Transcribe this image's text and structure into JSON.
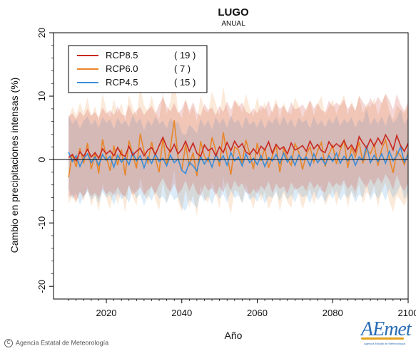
{
  "header": {
    "title": "LUGO",
    "subtitle": "ANUAL"
  },
  "footer": {
    "credit": "Agencia Estatal de Meteorología",
    "logo_text": "AEmet",
    "logo_caption": "Agencia Estatal de Meteorología"
  },
  "colors": {
    "RCP8.5": "#c8281e",
    "RCP6.0": "#e8862a",
    "RCP4.5": "#3a8ed8",
    "zero_line": "#000000"
  },
  "chart_data": {
    "type": "line",
    "title": "LUGO",
    "subtitle": "ANUAL",
    "xlabel": "Año",
    "ylabel": "Cambio en precipitaciones intensas (%)",
    "xlim": [
      2006,
      2100
    ],
    "ylim": [
      -22,
      20
    ],
    "xticks": [
      2020,
      2040,
      2060,
      2080,
      2100
    ],
    "yticks": [
      -20,
      -10,
      0,
      10,
      20
    ],
    "legend_position": "top-left",
    "grid": false,
    "x": [
      2010,
      2011,
      2012,
      2013,
      2014,
      2015,
      2016,
      2017,
      2018,
      2019,
      2020,
      2021,
      2022,
      2023,
      2024,
      2025,
      2026,
      2027,
      2028,
      2029,
      2030,
      2031,
      2032,
      2033,
      2034,
      2035,
      2036,
      2037,
      2038,
      2039,
      2040,
      2041,
      2042,
      2043,
      2044,
      2045,
      2046,
      2047,
      2048,
      2049,
      2050,
      2051,
      2052,
      2053,
      2054,
      2055,
      2056,
      2057,
      2058,
      2059,
      2060,
      2061,
      2062,
      2063,
      2064,
      2065,
      2066,
      2067,
      2068,
      2069,
      2070,
      2071,
      2072,
      2073,
      2074,
      2075,
      2076,
      2077,
      2078,
      2079,
      2080,
      2081,
      2082,
      2083,
      2084,
      2085,
      2086,
      2087,
      2088,
      2089,
      2090,
      2091,
      2092,
      2093,
      2094,
      2095,
      2096,
      2097,
      2098,
      2099,
      2100
    ],
    "series": [
      {
        "name": "RCP8.5",
        "count": "( 19 )",
        "color": "#c8281e",
        "values": [
          0.3,
          0.8,
          -0.2,
          1.2,
          0.5,
          1.6,
          0.4,
          1.1,
          0.2,
          1.7,
          0.9,
          1.4,
          0.6,
          1.9,
          0.8,
          0.5,
          2.1,
          0.7,
          1.3,
          1.8,
          0.6,
          1.5,
          1.9,
          0.8,
          2.2,
          3.5,
          2.0,
          1.2,
          2.4,
          0.9,
          1.6,
          2.9,
          1.3,
          2.6,
          1.0,
          0.5,
          2.3,
          1.4,
          1.8,
          0.6,
          2.0,
          1.1,
          2.7,
          1.4,
          2.9,
          1.9,
          2.5,
          1.2,
          0.8,
          1.7,
          0.9,
          2.1,
          1.5,
          2.8,
          1.0,
          2.4,
          1.6,
          2.0,
          0.9,
          2.6,
          1.5,
          1.8,
          2.2,
          1.3,
          2.9,
          1.7,
          2.4,
          1.4,
          1.1,
          2.8,
          1.9,
          2.5,
          2.0,
          3.0,
          1.6,
          2.3,
          1.2,
          3.6,
          2.6,
          1.8,
          3.2,
          2.1,
          3.4,
          2.4,
          3.9,
          2.9,
          1.5,
          3.8,
          2.2,
          1.3,
          2.6
        ],
        "upper": [
          6.8,
          7.3,
          6.4,
          7.6,
          6.8,
          8.0,
          6.9,
          7.5,
          6.6,
          8.2,
          7.2,
          7.8,
          7.0,
          8.4,
          7.2,
          6.9,
          8.6,
          7.1,
          7.7,
          8.3,
          7.0,
          7.9,
          8.4,
          7.2,
          8.7,
          9.8,
          8.4,
          7.6,
          8.9,
          7.3,
          8.0,
          9.4,
          7.7,
          9.1,
          7.4,
          6.9,
          8.8,
          7.8,
          8.2,
          7.0,
          8.5,
          7.5,
          9.2,
          7.8,
          9.4,
          8.3,
          9.0,
          7.6,
          7.2,
          8.1,
          7.3,
          8.6,
          7.9,
          9.3,
          7.4,
          8.9,
          8.0,
          8.5,
          7.3,
          9.1,
          7.9,
          8.2,
          8.7,
          7.7,
          9.4,
          8.1,
          8.9,
          7.8,
          7.5,
          9.3,
          8.3,
          9.0,
          8.5,
          9.5,
          8.0,
          8.8,
          7.6,
          10.1,
          9.1,
          8.2,
          9.7,
          8.6,
          9.9,
          8.9,
          10.4,
          9.4,
          7.9,
          10.3,
          8.7,
          7.7,
          9.1
        ],
        "lower": [
          -6.0,
          -5.5,
          -6.6,
          -5.1,
          -5.9,
          -4.7,
          -5.8,
          -5.2,
          -6.1,
          -4.6,
          -5.5,
          -4.9,
          -5.7,
          -4.3,
          -5.5,
          -5.8,
          -4.1,
          -5.6,
          -5.0,
          -4.4,
          -5.7,
          -4.8,
          -4.3,
          -5.5,
          -4.0,
          -2.9,
          -4.3,
          -5.1,
          -3.8,
          -5.4,
          -4.7,
          -3.3,
          -5.0,
          -3.6,
          -5.3,
          -5.8,
          -3.9,
          -4.9,
          -4.5,
          -5.7,
          -4.2,
          -5.2,
          -3.5,
          -4.9,
          -3.3,
          -4.4,
          -3.7,
          -5.1,
          -5.5,
          -4.6,
          -5.4,
          -4.1,
          -4.8,
          -3.4,
          -5.3,
          -3.8,
          -4.7,
          -4.2,
          -5.4,
          -3.6,
          -4.8,
          -4.5,
          -4.0,
          -5.0,
          -3.3,
          -4.6,
          -3.8,
          -4.9,
          -5.2,
          -3.4,
          -4.4,
          -3.7,
          -4.2,
          -3.2,
          -4.7,
          -3.9,
          -5.1,
          -2.6,
          -3.6,
          -4.5,
          -3.0,
          -4.1,
          -2.8,
          -3.8,
          -2.3,
          -3.3,
          -4.8,
          -2.4,
          -4.0,
          -5.0,
          -3.6
        ]
      },
      {
        "name": "RCP6.0",
        "count": "(  7 )",
        "color": "#e8862a",
        "values": [
          -2.8,
          0.9,
          -1.2,
          1.8,
          -0.6,
          2.6,
          -1.5,
          1.0,
          -2.2,
          3.2,
          0.4,
          -1.8,
          2.2,
          -0.9,
          1.6,
          -2.5,
          3.0,
          0.8,
          -1.4,
          4.1,
          1.2,
          -0.5,
          2.8,
          0.2,
          -2.0,
          3.4,
          -0.8,
          1.9,
          6.2,
          0.3,
          -1.7,
          2.4,
          -1.0,
          1.1,
          -2.6,
          2.9,
          0.5,
          -0.3,
          3.5,
          1.4,
          -1.1,
          4.3,
          0.7,
          -2.4,
          2.0,
          1.5,
          -0.6,
          3.1,
          0.9,
          -1.5,
          2.6,
          -0.2,
          1.8,
          -1.3,
          0.6,
          2.3,
          -2.0,
          1.7,
          0.1,
          -0.9,
          2.5,
          1.2,
          -1.6,
          0.8,
          2.0,
          -0.4,
          1.4,
          2.7,
          -1.1,
          0.9,
          2.2,
          -0.7,
          1.5,
          3.0,
          -1.3,
          1.9,
          0.4,
          2.8,
          -0.6,
          1.6,
          0.9,
          2.4,
          -1.0,
          1.7,
          3.1,
          0.2,
          -2.1,
          1.3,
          0.6,
          -0.8,
          1.1
        ],
        "upper": [
          6.5,
          8.3,
          7.0,
          9.0,
          7.4,
          9.8,
          6.8,
          8.4,
          6.2,
          10.4,
          7.9,
          6.6,
          9.5,
          7.3,
          8.9,
          6.1,
          10.2,
          8.2,
          6.9,
          11.3,
          8.6,
          7.6,
          10.0,
          7.6,
          6.3,
          10.6,
          7.2,
          9.2,
          13.4,
          7.7,
          6.5,
          9.7,
          7.1,
          8.5,
          5.9,
          10.1,
          7.9,
          7.4,
          10.7,
          8.8,
          6.9,
          11.5,
          8.1,
          6.2,
          9.3,
          8.9,
          7.4,
          10.4,
          8.2,
          6.8,
          9.9,
          7.5,
          9.1,
          6.6,
          7.9,
          9.6,
          6.3,
          9.0,
          7.5,
          7.2,
          9.8,
          8.5,
          6.5,
          8.2,
          9.3,
          7.0,
          8.8,
          10.0,
          7.1,
          8.3,
          9.5,
          7.2,
          8.8,
          10.2,
          7.0,
          9.2,
          7.8,
          10.0,
          7.3,
          8.9,
          8.2,
          9.7,
          6.9,
          9.0,
          10.3,
          7.6,
          6.3,
          8.6,
          7.9,
          7.3,
          8.4
        ],
        "lower": [
          -7.0,
          -5.8,
          -6.9,
          -5.0,
          -6.6,
          -4.2,
          -7.4,
          -5.6,
          -8.2,
          -3.8,
          -6.1,
          -7.9,
          -4.6,
          -7.0,
          -5.1,
          -8.4,
          -3.9,
          -5.9,
          -7.3,
          -2.8,
          -5.4,
          -6.4,
          -4.0,
          -6.3,
          -8.0,
          -3.5,
          -6.8,
          -4.9,
          -1.5,
          -6.6,
          -8.3,
          -4.6,
          -7.6,
          -5.5,
          -8.9,
          -4.0,
          -6.2,
          -6.8,
          -3.4,
          -5.4,
          -7.7,
          -2.6,
          -5.9,
          -8.6,
          -4.7,
          -5.2,
          -6.9,
          -3.8,
          -5.8,
          -7.9,
          -4.3,
          -6.6,
          -5.0,
          -7.8,
          -6.3,
          -4.5,
          -8.2,
          -5.3,
          -6.7,
          -7.6,
          -4.2,
          -5.5,
          -7.9,
          -6.0,
          -4.6,
          -7.1,
          -5.3,
          -3.9,
          -7.3,
          -5.9,
          -4.5,
          -7.2,
          -5.3,
          -3.8,
          -7.6,
          -4.8,
          -6.1,
          -3.9,
          -7.0,
          -5.1,
          -5.9,
          -4.1,
          -7.5,
          -5.0,
          -3.6,
          -6.5,
          -8.3,
          -5.6,
          -6.4,
          -7.3,
          -5.8
        ]
      },
      {
        "name": "RCP4.5",
        "count": "( 15 )",
        "color": "#3a8ed8",
        "values": [
          1.2,
          -0.3,
          0.6,
          -1.1,
          0.2,
          0.9,
          -0.5,
          0.4,
          -0.9,
          0.8,
          -0.1,
          0.5,
          -1.2,
          0.7,
          -0.4,
          0.3,
          -0.8,
          1.1,
          -0.2,
          0.6,
          -1.3,
          0.4,
          -0.6,
          0.9,
          -0.3,
          0.2,
          -1.0,
          0.7,
          -0.5,
          0.1,
          -1.7,
          -2.2,
          -0.4,
          -1.0,
          -1.8,
          0.5,
          -0.7,
          0.3,
          -1.2,
          0.8,
          -0.3,
          0.6,
          -0.9,
          1.1,
          -0.2,
          0.4,
          -1.0,
          0.9,
          -0.5,
          0.2,
          -0.8,
          0.6,
          -1.1,
          0.3,
          -0.2,
          0.8,
          -0.6,
          1.0,
          -0.4,
          0.5,
          -0.9,
          0.7,
          -0.1,
          0.4,
          -1.0,
          0.9,
          -0.5,
          0.3,
          -0.8,
          0.6,
          -0.3,
          1.0,
          -0.6,
          0.5,
          -0.2,
          0.8,
          -0.9,
          0.4,
          -0.1,
          2.2,
          -0.5,
          0.7,
          -0.3,
          0.9,
          -0.6,
          1.3,
          -0.2,
          0.6,
          2.0,
          -0.4,
          0.8
        ],
        "upper": [
          7.0,
          5.6,
          6.4,
          4.9,
          6.1,
          6.8,
          5.4,
          6.3,
          5.0,
          6.7,
          5.8,
          6.4,
          4.8,
          6.6,
          5.5,
          6.2,
          5.1,
          7.0,
          5.7,
          6.5,
          4.6,
          6.3,
          5.3,
          6.8,
          5.6,
          6.1,
          4.9,
          6.6,
          5.4,
          6.0,
          4.2,
          3.8,
          5.5,
          4.9,
          4.1,
          6.4,
          5.2,
          6.2,
          4.7,
          6.7,
          5.6,
          6.5,
          5.0,
          7.0,
          5.7,
          6.3,
          4.9,
          6.8,
          5.4,
          6.1,
          5.1,
          6.5,
          4.8,
          6.2,
          5.7,
          6.7,
          5.3,
          6.9,
          5.5,
          6.4,
          5.0,
          6.6,
          5.8,
          6.3,
          4.9,
          6.8,
          5.4,
          6.2,
          5.1,
          6.5,
          5.6,
          6.9,
          5.3,
          6.4,
          5.7,
          6.7,
          5.0,
          6.3,
          5.8,
          8.1,
          5.4,
          6.6,
          5.6,
          6.8,
          5.3,
          7.2,
          5.7,
          6.5,
          7.9,
          5.5,
          6.7
        ],
        "lower": [
          -4.6,
          -6.2,
          -5.3,
          -7.1,
          -5.8,
          -5.1,
          -6.4,
          -5.6,
          -6.9,
          -5.1,
          -6.0,
          -5.5,
          -7.2,
          -5.3,
          -6.3,
          -5.7,
          -6.8,
          -4.8,
          -6.1,
          -5.4,
          -7.3,
          -5.6,
          -6.5,
          -5.0,
          -6.2,
          -5.8,
          -6.9,
          -5.3,
          -6.4,
          -5.9,
          -7.6,
          -8.1,
          -6.3,
          -6.9,
          -7.7,
          -5.4,
          -6.6,
          -5.7,
          -7.1,
          -5.1,
          -6.2,
          -5.4,
          -6.8,
          -4.9,
          -6.1,
          -5.6,
          -6.9,
          -5.0,
          -6.4,
          -5.8,
          -6.7,
          -5.3,
          -7.0,
          -5.7,
          -6.1,
          -5.1,
          -6.5,
          -4.9,
          -6.3,
          -5.5,
          -6.8,
          -5.2,
          -6.0,
          -5.6,
          -6.9,
          -5.0,
          -6.4,
          -5.6,
          -6.7,
          -5.3,
          -6.2,
          -4.9,
          -6.5,
          -5.4,
          -6.1,
          -5.1,
          -6.8,
          -5.5,
          -6.0,
          -3.7,
          -6.4,
          -5.2,
          -6.2,
          -5.0,
          -6.5,
          -4.6,
          -6.1,
          -5.3,
          -4.0,
          -6.3,
          -5.1
        ]
      }
    ]
  }
}
